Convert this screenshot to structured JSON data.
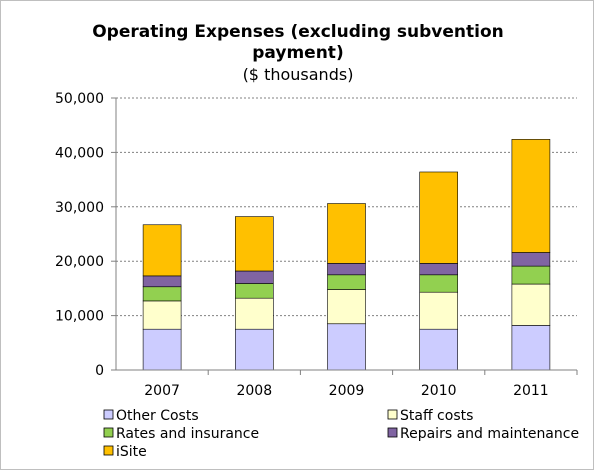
{
  "chart_data": {
    "type": "bar",
    "stacked": true,
    "title": "Operating Expenses (excluding subvention payment)",
    "title_lines": [
      "Operating Expenses (excluding subvention",
      "payment)"
    ],
    "subtitle": "($ thousands)",
    "xlabel": "",
    "ylabel": "",
    "ylim": [
      0,
      50000
    ],
    "yticks": [
      0,
      10000,
      20000,
      30000,
      40000,
      50000
    ],
    "ytick_labels": [
      "0",
      "10,000",
      "20,000",
      "30,000",
      "40,000",
      "50,000"
    ],
    "grid": "horizontal dotted",
    "legend_position": "bottom",
    "categories": [
      "2007",
      "2008",
      "2009",
      "2010",
      "2011"
    ],
    "series": [
      {
        "name": "Other Costs",
        "color": "#ccccff",
        "values": [
          7500,
          7500,
          8500,
          7500,
          8200
        ]
      },
      {
        "name": "Staff costs",
        "color": "#ffffcc",
        "values": [
          5200,
          5700,
          6300,
          6800,
          7600
        ]
      },
      {
        "name": "Rates and insurance",
        "color": "#92d050",
        "values": [
          2600,
          2700,
          2700,
          3200,
          3300
        ]
      },
      {
        "name": "Repairs and maintenance",
        "color": "#8064a2",
        "values": [
          2000,
          2300,
          2100,
          2100,
          2500
        ]
      },
      {
        "name": "iSite",
        "color": "#ffc000",
        "values": [
          9400,
          10000,
          11000,
          16800,
          20800
        ]
      }
    ]
  }
}
